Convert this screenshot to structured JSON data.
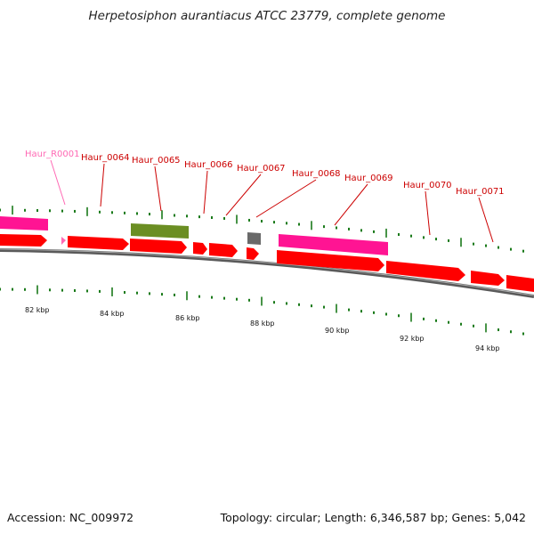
{
  "title": "Herpetosiphon aurantiacus ATCC 23779, complete genome",
  "accession": "Accession: NC_009972",
  "summary": "Topology: circular; Length: 6,346,587 bp; Genes: 5,042",
  "colors": {
    "cds": "#ff0000",
    "rna": "#ff1493",
    "gene": "#6b8e23",
    "other": "#696969",
    "backbone": "#808080",
    "tick": "#1a7a1a",
    "label_red": "#cc0000",
    "label_pink": "#ff69b4"
  },
  "genes": [
    {
      "name": "Haur_R0001"
    },
    {
      "name": "Haur_0064"
    },
    {
      "name": "Haur_0065"
    },
    {
      "name": "Haur_0066"
    },
    {
      "name": "Haur_0067"
    },
    {
      "name": "Haur_0068"
    },
    {
      "name": "Haur_0069"
    },
    {
      "name": "Haur_0070"
    },
    {
      "name": "Haur_0071"
    }
  ],
  "scale_labels": [
    "82 kbp",
    "84 kbp",
    "86 kbp",
    "88 kbp",
    "90 kbp",
    "92 kbp",
    "94 kbp"
  ]
}
